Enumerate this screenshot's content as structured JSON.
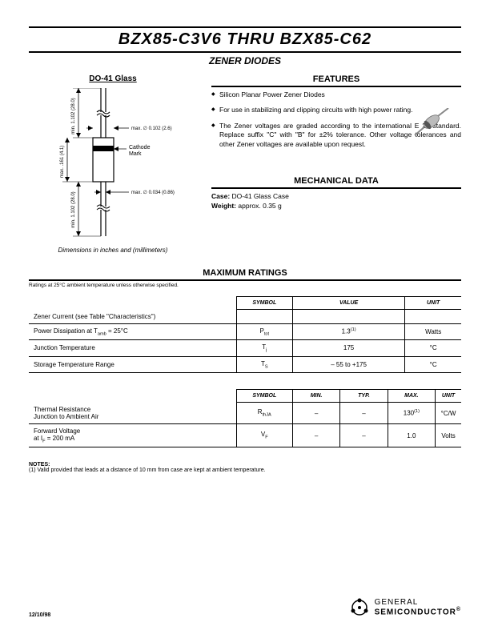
{
  "title": "BZX85-C3V6 THRU BZX85-C62",
  "subtitle": "ZENER DIODES",
  "package": {
    "heading": "DO-41 Glass",
    "caption": "Dimensions in inches and (millimeters)",
    "dims": {
      "lead_min": "min. 1.102 (28.0)",
      "body_max": "max. .161 (4.1)",
      "lead_min2": "min. 1.102 (28.0)",
      "dia_top": "max. ∅ 0.102 (2.6)",
      "dia_bot": "max. ∅ 0.034 (0.86)",
      "cathode": "Cathode",
      "mark": "Mark"
    }
  },
  "features": {
    "heading": "FEATURES",
    "items": [
      "Silicon Planar Power Zener Diodes",
      "For use in stabilizing and clipping circuits with high power rating.",
      "The Zener voltages are graded according to the international E 24 standard. Replace suffix \"C\" with \"B\" for ±2% tolerance. Other voltage tolerances and other Zener voltages are available upon request."
    ]
  },
  "mechanical": {
    "heading": "MECHANICAL DATA",
    "case_label": "Case:",
    "case_value": "DO-41 Glass Case",
    "weight_label": "Weight:",
    "weight_value": "approx. 0.35 g"
  },
  "max_ratings": {
    "heading": "MAXIMUM RATINGS",
    "condition": "Ratings at 25°C ambient temperature unless otherwise specified.",
    "headers": {
      "symbol": "SYMBOL",
      "value": "VALUE",
      "unit": "UNIT"
    },
    "rows": [
      {
        "param": "Zener Current (see Table \"Characteristics\")",
        "symbol": "",
        "value": "",
        "unit": ""
      },
      {
        "param": "Power Dissipation at T<sub>amb</sub> = 25°C",
        "symbol": "P<sub>tot</sub>",
        "value": "1.3<sup>(1)</sup>",
        "unit": "Watts"
      },
      {
        "param": "Junction Temperature",
        "symbol": "T<sub>j</sub>",
        "value": "175",
        "unit": "°C"
      },
      {
        "param": "Storage Temperature Range",
        "symbol": "T<sub>S</sub>",
        "value": "– 55 to +175",
        "unit": "°C"
      }
    ]
  },
  "thermal": {
    "headers": {
      "symbol": "SYMBOL",
      "min": "MIN.",
      "typ": "TYP.",
      "max": "MAX.",
      "unit": "UNIT"
    },
    "rows": [
      {
        "param": "Thermal Resistance<br>Junction to Ambient Air",
        "symbol": "R<sub>thJA</sub>",
        "min": "–",
        "typ": "–",
        "max": "130<sup>(1)</sup>",
        "unit": "°C/W"
      },
      {
        "param": "Forward Voltage<br>at I<sub>F</sub> = 200 mA",
        "symbol": "V<sub>F</sub>",
        "min": "–",
        "typ": "–",
        "max": "1.0",
        "unit": "Volts"
      }
    ]
  },
  "notes": {
    "heading": "NOTES:",
    "text": "(1) Valid provided that leads at a distance of 10 mm from case are kept at ambient temperature."
  },
  "footer": {
    "date": "12/10/98",
    "brand1": "GENERAL",
    "brand2": "SEMICONDUCTOR",
    "reg": "®"
  },
  "colors": {
    "text": "#000000",
    "bg": "#ffffff"
  }
}
